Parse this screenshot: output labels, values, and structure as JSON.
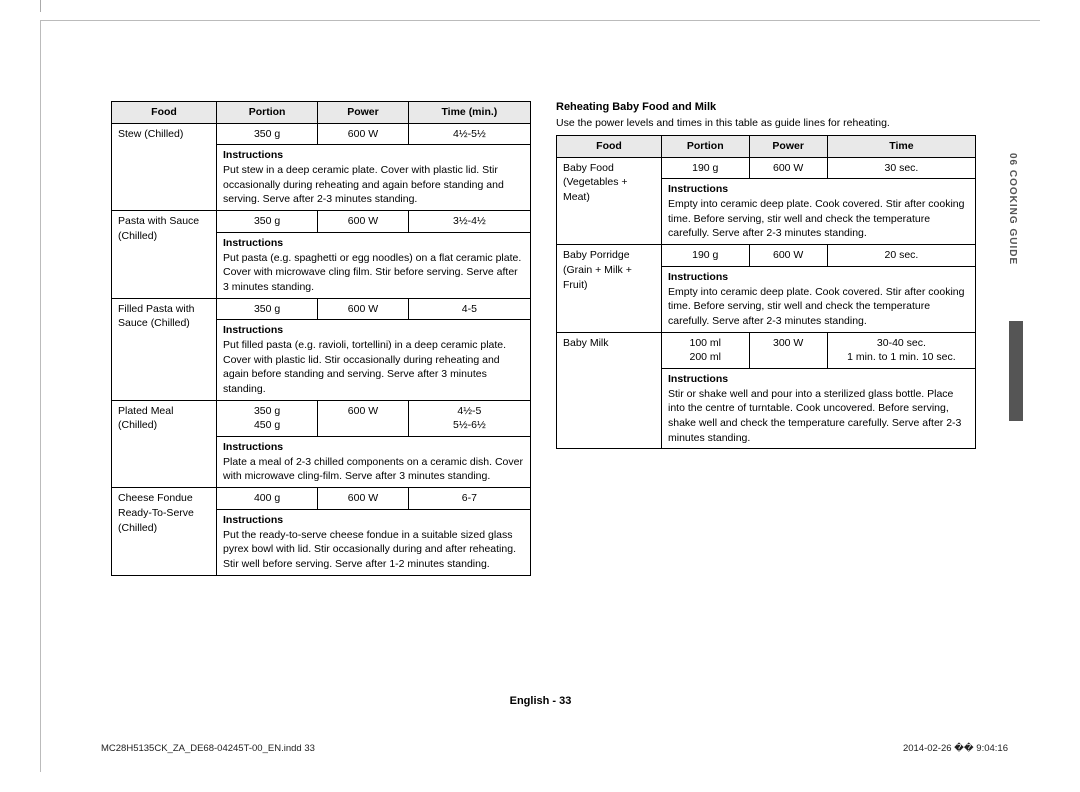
{
  "sideTab": "06  COOKING GUIDE",
  "footer": "English - 33",
  "footerLeft": "MC28H5135CK_ZA_DE68-04245T-00_EN.indd   33",
  "footerRight": "2014-02-26   �� 9:04:16",
  "left": {
    "headers": [
      "Food",
      "Portion",
      "Power",
      "Time (min.)"
    ],
    "rows": [
      {
        "food": "Stew (Chilled)",
        "portion": "350 g",
        "power": "600 W",
        "time": "4½-5½",
        "instructions": "Put stew in a deep ceramic plate. Cover with plastic lid. Stir occasionally during reheating and again before standing and serving.\nServe after 2-3 minutes standing."
      },
      {
        "food": "Pasta with Sauce (Chilled)",
        "portion": "350 g",
        "power": "600 W",
        "time": "3½-4½",
        "instructions": "Put pasta (e.g. spaghetti or egg noodles) on a flat ceramic plate. Cover with microwave cling film. Stir before serving.\nServe after 3 minutes standing."
      },
      {
        "food": "Filled Pasta with Sauce (Chilled)",
        "portion": "350 g",
        "power": "600 W",
        "time": "4-5",
        "instructions": "Put filled pasta (e.g. ravioli, tortellini) in a deep ceramic plate. Cover with plastic lid. Stir occasionally during reheating and again before standing and serving. Serve after 3 minutes standing."
      },
      {
        "food": "Plated Meal (Chilled)",
        "portion": "350 g\n450 g",
        "power": "600 W",
        "time": "4½-5\n5½-6½",
        "instructions": "Plate a meal of 2-3 chilled components on a ceramic dish. Cover with microwave cling-film. Serve after 3 minutes standing."
      },
      {
        "food": "Cheese Fondue Ready-To-Serve (Chilled)",
        "portion": "400 g",
        "power": "600 W",
        "time": "6-7",
        "instructions": "Put the ready-to-serve cheese fondue in a suitable sized glass pyrex bowl with lid. Stir occasionally during and after reheating. Stir well before serving. Serve after 1-2 minutes standing."
      }
    ]
  },
  "right": {
    "title": "Reheating Baby Food and Milk",
    "caption": "Use the power levels and times in this table as guide lines for reheating.",
    "headers": [
      "Food",
      "Portion",
      "Power",
      "Time"
    ],
    "rows": [
      {
        "food": "Baby Food (Vegetables + Meat)",
        "portion": "190 g",
        "power": "600 W",
        "time": "30 sec.",
        "instructions": "Empty into ceramic deep plate. Cook covered. Stir after cooking time. Before serving, stir well and check the temperature carefully. Serve after 2-3 minutes standing."
      },
      {
        "food": "Baby Porridge (Grain + Milk + Fruit)",
        "portion": "190 g",
        "power": "600 W",
        "time": "20 sec.",
        "instructions": "Empty into ceramic deep plate. Cook covered. Stir after cooking time. Before serving, stir well and check the temperature carefully. Serve after 2-3 minutes standing."
      },
      {
        "food": "Baby Milk",
        "portion": "100 ml\n200 ml",
        "power": "300 W",
        "time": "30-40 sec.\n1 min. to 1 min. 10 sec.",
        "instructions": "Stir or shake well and pour into a sterilized glass bottle. Place into the centre of turntable. Cook uncovered. Before serving, shake well and check the temperature carefully. Serve after 2-3 minutes standing."
      }
    ]
  }
}
